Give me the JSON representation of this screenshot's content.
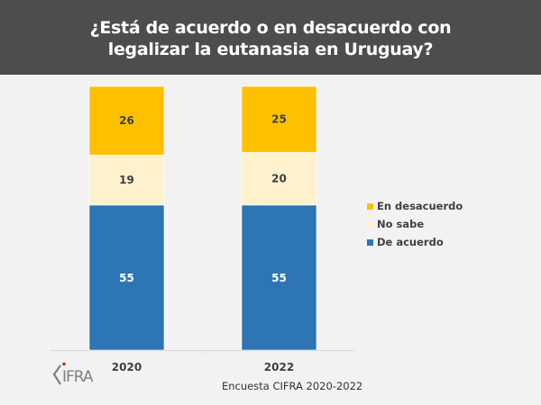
{
  "header": {
    "title_line1": "¿Está de acuerdo o en desacuerdo con",
    "title_line2": "legalizar la eutanasia en Uruguay?"
  },
  "source": "Encuesta CIFRA 2020-2022",
  "logo_text": "CIFRA",
  "chart_data": {
    "type": "bar",
    "stacked": true,
    "title": "¿Está de acuerdo o en desacuerdo con legalizar la eutanasia en Uruguay?",
    "categories": [
      "2020",
      "2022"
    ],
    "series": [
      {
        "name": "De acuerdo",
        "color": "#2e75b6",
        "label_color": "#ffffff",
        "values": [
          55,
          55
        ]
      },
      {
        "name": "No sabe",
        "color": "#fff2cc",
        "label_color": "#404040",
        "values": [
          19,
          20
        ]
      },
      {
        "name": "En desacuerdo",
        "color": "#ffc000",
        "label_color": "#404040",
        "values": [
          26,
          25
        ]
      }
    ],
    "legend_order": [
      "En desacuerdo",
      "No sabe",
      "De acuerdo"
    ],
    "legend_position": "right",
    "ylim": [
      0,
      100
    ],
    "xlabel": "",
    "ylabel": "",
    "grid": false,
    "source": "Encuesta CIFRA 2020-2022"
  }
}
